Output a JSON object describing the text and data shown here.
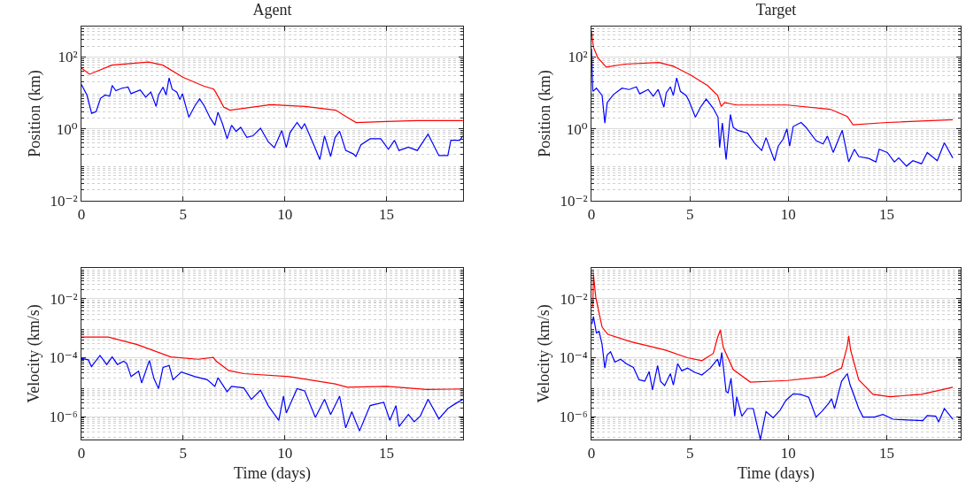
{
  "chart_data": [
    {
      "type": "line",
      "title": "Agent",
      "ylabel": "Position (km)",
      "log": "y",
      "grid": true,
      "xlim": [
        0,
        18.76
      ],
      "xticks": [
        0,
        5,
        10,
        15
      ],
      "ylim": [
        0.01,
        700
      ],
      "yticks": [
        {
          "value": 0.01,
          "label": "10⁻²"
        },
        {
          "value": 1,
          "label": "10⁰"
        },
        {
          "value": 100,
          "label": "10²"
        }
      ],
      "series": [
        {
          "color": "#ff0000",
          "x": [
            0,
            0.4,
            1.5,
            3.3,
            4,
            5,
            6,
            6.5,
            6.6,
            7,
            7.3,
            9.3,
            11,
            12.5,
            13,
            13.5,
            15,
            16.5,
            18.75
          ],
          "values": [
            49,
            33,
            59,
            72,
            59,
            27,
            15.5,
            12.7,
            10.5,
            4,
            3.3,
            4.7,
            4.2,
            3.3,
            2.2,
            1.5,
            1.6,
            1.7,
            1.7
          ]
        },
        {
          "color": "#0000ff",
          "x": [
            0,
            0.27,
            0.5,
            0.72,
            0.94,
            1.17,
            1.39,
            1.51,
            1.69,
            1.99,
            2.29,
            2.44,
            2.89,
            3.16,
            3.41,
            3.67,
            3.79,
            4.01,
            4.16,
            4.31,
            4.46,
            4.69,
            4.84,
            4.96,
            5.28,
            5.58,
            5.81,
            6.03,
            6.33,
            6.56,
            6.71,
            6.93,
            7.16,
            7.38,
            7.6,
            7.83,
            8.13,
            8.43,
            8.8,
            9.18,
            9.48,
            9.85,
            10.07,
            10.25,
            10.6,
            10.82,
            10.97,
            11.42,
            11.72,
            11.95,
            12.25,
            12.47,
            12.69,
            12.99,
            13.37,
            13.49,
            13.74,
            14.19,
            14.71,
            15.09,
            15.39,
            15.61,
            16.07,
            16.51,
            17.04,
            17.57,
            18.01,
            18.16,
            18.6,
            18.75
          ],
          "values": [
            17,
            8.7,
            2.7,
            3,
            7.1,
            8.7,
            8.1,
            16,
            11.5,
            13.5,
            14.5,
            9.5,
            12,
            7.6,
            10.5,
            4.2,
            8.7,
            14.5,
            8.7,
            26,
            12.6,
            10.5,
            6.5,
            9.5,
            2.1,
            4.4,
            6.8,
            4.4,
            2,
            1.26,
            2.9,
            1.4,
            0.53,
            1.26,
            0.85,
            1.1,
            0.58,
            0.64,
            1.04,
            0.44,
            0.3,
            0.9,
            0.3,
            0.78,
            1.5,
            1,
            1.4,
            0.36,
            0.14,
            0.64,
            0.17,
            0.58,
            0.86,
            0.25,
            0.2,
            0.17,
            0.36,
            0.53,
            0.53,
            0.27,
            0.48,
            0.25,
            0.31,
            0.25,
            0.71,
            0.18,
            0.18,
            0.48,
            0.48,
            0.64
          ]
        }
      ]
    },
    {
      "type": "line",
      "title": "Target",
      "ylabel": "Position (km)",
      "log": "y",
      "grid": true,
      "xlim": [
        0,
        18.76
      ],
      "xticks": [
        0,
        5,
        10,
        15
      ],
      "ylim": [
        0.01,
        700
      ],
      "yticks": [
        {
          "value": 0.01,
          "label": "10⁻²"
        },
        {
          "value": 1,
          "label": "10⁰"
        },
        {
          "value": 100,
          "label": "10²"
        }
      ],
      "series": [
        {
          "color": "#ff0000",
          "x": [
            0,
            0.1,
            0.32,
            0.75,
            1.7,
            3.43,
            4.16,
            5.03,
            5.9,
            6.41,
            6.59,
            6.77,
            7.35,
            9.96,
            12.13,
            13,
            13.29,
            15.03,
            18.36
          ],
          "values": [
            513,
            186,
            96,
            52,
            63,
            70,
            55,
            31.6,
            16,
            8.5,
            4.2,
            5.4,
            4.6,
            4.6,
            3.5,
            2.2,
            1.3,
            1.5,
            1.8
          ]
        },
        {
          "color": "#0000ff",
          "x": [
            0,
            0.07,
            0.25,
            0.54,
            0.68,
            0.8,
            1.12,
            1.55,
            1.91,
            2.28,
            2.45,
            2.88,
            3.14,
            3.39,
            3.68,
            3.8,
            4.01,
            4.16,
            4.33,
            4.52,
            4.81,
            4.96,
            5.28,
            5.54,
            5.83,
            6.19,
            6.43,
            6.51,
            6.65,
            6.84,
            7.06,
            7.2,
            7.42,
            7.93,
            8.29,
            8.65,
            8.87,
            9.3,
            9.49,
            9.74,
            9.93,
            10.07,
            10.25,
            10.65,
            10.9,
            11.41,
            11.77,
            11.99,
            12.28,
            12.5,
            12.74,
            13.07,
            13.36,
            13.58,
            14.09,
            14.45,
            14.62,
            15.03,
            15.39,
            15.61,
            16.01,
            16.33,
            16.77,
            17.06,
            17.57,
            17.93,
            18.36
          ],
          "values": [
            170,
            11,
            13.5,
            8.5,
            1.45,
            5.4,
            9,
            13.5,
            12.4,
            14.7,
            9.4,
            12.4,
            8.1,
            12.4,
            4,
            10,
            14.7,
            8.5,
            26,
            11,
            8.5,
            5.9,
            2.1,
            4,
            6.7,
            3.7,
            2.1,
            0.3,
            1.45,
            0.14,
            2.5,
            1.1,
            0.91,
            0.76,
            0.4,
            0.25,
            0.57,
            0.13,
            0.33,
            0.52,
            1,
            0.33,
            1.16,
            1.5,
            1.1,
            0.47,
            0.38,
            0.63,
            0.22,
            0.43,
            0.91,
            0.12,
            0.27,
            0.17,
            0.15,
            0.12,
            0.27,
            0.22,
            0.12,
            0.155,
            0.092,
            0.13,
            0.107,
            0.22,
            0.13,
            0.41,
            0.155
          ]
        }
      ]
    },
    {
      "type": "line",
      "xlabel": "Time (days)",
      "ylabel": "Velocity (km/s)",
      "log": "y",
      "grid": true,
      "xlim": [
        0,
        18.76
      ],
      "xticks": [
        0,
        5,
        10,
        15
      ],
      "ylim": [
        1.7e-07,
        0.11
      ],
      "yticks": [
        {
          "value": 1e-06,
          "label": "10⁻⁶"
        },
        {
          "value": 0.0001,
          "label": "10⁻⁴"
        },
        {
          "value": 0.01,
          "label": "10⁻²"
        }
      ],
      "series": [
        {
          "color": "#ff0000",
          "x": [
            0,
            1.32,
            2.74,
            4.39,
            5.73,
            6.48,
            6.63,
            7.23,
            7.98,
            10.22,
            12.47,
            13.07,
            15.01,
            16.96,
            18.76
          ],
          "values": [
            0.0005,
            0.0005,
            0.00028,
            0.000107,
            8.9e-05,
            0.000102,
            7.6e-05,
            3.7e-05,
            2.9e-05,
            2.3e-05,
            1.3e-05,
            1e-05,
            1.07e-05,
            8.4e-06,
            8.8e-06
          ]
        },
        {
          "color": "#0000ff",
          "x": [
            0,
            0.34,
            0.49,
            0.91,
            1.24,
            1.51,
            1.77,
            2.07,
            2.22,
            2.44,
            2.81,
            2.96,
            3.34,
            3.56,
            3.79,
            4.01,
            4.31,
            4.5,
            4.91,
            5.58,
            6.18,
            6.56,
            6.71,
            7.16,
            7.38,
            7.98,
            8.35,
            8.8,
            9.18,
            9.7,
            9.93,
            10.07,
            10.6,
            10.97,
            11.5,
            11.95,
            12.25,
            12.69,
            12.99,
            13.29,
            13.67,
            14.19,
            14.86,
            15.16,
            15.46,
            15.61,
            16.07,
            16.36,
            16.66,
            17.04,
            17.57,
            18.01,
            18.46,
            18.76
          ],
          "values": [
            9.5e-05,
            8.5e-05,
            5e-05,
            0.00012,
            5.9e-05,
            0.000107,
            5.9e-05,
            7.6e-05,
            6.5e-05,
            2.3e-05,
            3.5e-05,
            1.4e-05,
            8.1e-05,
            2e-05,
            9e-06,
            4.7e-05,
            5.5e-05,
            1.8e-05,
            3.3e-05,
            2.3e-05,
            1.8e-05,
            1.07e-05,
            2.1e-05,
            7.1e-06,
            1.07e-05,
            9.5e-06,
            3.9e-06,
            7.9e-06,
            2.4e-06,
            7.6e-07,
            5e-06,
            1.35e-06,
            9e-06,
            7.6e-06,
            9.5e-07,
            3.9e-06,
            1.2e-06,
            5e-06,
            4.2e-07,
            1.5e-06,
            3.3e-07,
            2.4e-06,
            3.1e-06,
            7.6e-07,
            2.4e-06,
            4.7e-07,
            1.2e-06,
            6.8e-07,
            1.07e-06,
            3.9e-06,
            8.5e-07,
            1.9e-06,
            3e-06,
            3.9e-06
          ]
        }
      ]
    },
    {
      "type": "line",
      "xlabel": "Time (days)",
      "ylabel": "Velocity (km/s)",
      "log": "y",
      "grid": true,
      "xlim": [
        0,
        18.76
      ],
      "xticks": [
        0,
        5,
        10,
        15
      ],
      "ylim": [
        1.7e-07,
        0.11
      ],
      "yticks": [
        {
          "value": 1e-06,
          "label": "10⁻⁶"
        },
        {
          "value": 0.0001,
          "label": "10⁻⁴"
        },
        {
          "value": 0.01,
          "label": "10⁻²"
        }
      ],
      "series": [
        {
          "color": "#ff0000",
          "x": [
            0.07,
            0.1,
            0.22,
            0.54,
            0.83,
            1.99,
            3.72,
            4.88,
            5.61,
            6.19,
            6.41,
            6.55,
            6.7,
            7.2,
            8.07,
            9.96,
            11.84,
            12.71,
            13,
            13.07,
            13.17,
            13.58,
            14.3,
            15.17,
            16.77,
            18.36
          ],
          "values": [
            0.0054,
            0.066,
            0.011,
            0.0011,
            0.00062,
            0.00035,
            0.000185,
            0.0001,
            8e-05,
            0.00014,
            0.00049,
            0.00087,
            0.00022,
            4e-05,
            1.5e-05,
            1.7e-05,
            2.3e-05,
            4.5e-05,
            0.00025,
            0.00055,
            0.00018,
            1.8e-05,
            5.8e-06,
            4.8e-06,
            5.8e-06,
            1e-05
          ]
        },
        {
          "color": "#0000ff",
          "x": [
            0.03,
            0.1,
            0.25,
            0.39,
            0.54,
            0.68,
            0.8,
            0.97,
            1.19,
            1.48,
            1.77,
            2.13,
            2.42,
            2.71,
            2.93,
            3.1,
            3.36,
            3.51,
            3.72,
            4.01,
            4.16,
            4.38,
            4.59,
            4.88,
            5.25,
            5.61,
            6.04,
            6.41,
            6.51,
            6.62,
            6.84,
            6.94,
            7.09,
            7.28,
            7.38,
            7.64,
            7.93,
            8.22,
            8.43,
            8.58,
            8.87,
            9.23,
            9.59,
            9.88,
            10.25,
            10.61,
            11.04,
            11.41,
            11.7,
            12.06,
            12.2,
            12.35,
            12.71,
            13,
            13.14,
            13.32,
            13.58,
            13.8,
            14.38,
            14.81,
            15.32,
            16.04,
            16.84,
            17.06,
            17.49,
            17.64,
            17.93,
            18.36
          ],
          "values": [
            0.0014,
            0.0025,
            0.00069,
            0.00078,
            0.00028,
            4.5e-05,
            0.000126,
            0.00016,
            7.1e-05,
            8.9e-05,
            6.3e-05,
            4.7e-05,
            1.8e-05,
            1.6e-05,
            3.4e-05,
            8.1e-06,
            5.4e-05,
            1.6e-05,
            1.15e-05,
            2.9e-05,
            1.2e-05,
            6.3e-05,
            3.6e-05,
            4.5e-05,
            3.2e-05,
            2.6e-05,
            4.5e-05,
            8.9e-05,
            5e-05,
            0.00015,
            7.2e-06,
            6.5e-06,
            2e-05,
            1.05e-06,
            4.8e-06,
            1.05e-06,
            1.9e-06,
            1.9e-06,
            4.7e-07,
            1.7e-07,
            1.5e-06,
            9.3e-07,
            1.7e-06,
            3.6e-06,
            6e-06,
            5.8e-06,
            4.6e-06,
            9.8e-07,
            1.5e-06,
            2.9e-06,
            4.1e-06,
            1.9e-06,
            1.6e-05,
            2.9e-05,
            1.2e-05,
            5.8e-06,
            1.9e-06,
            9.8e-07,
            9.8e-07,
            1.2e-06,
            8.3e-07,
            7.8e-07,
            7.4e-07,
            1.1e-06,
            1.05e-06,
            6.6e-07,
            1.9e-06,
            8.3e-07
          ]
        }
      ]
    }
  ]
}
